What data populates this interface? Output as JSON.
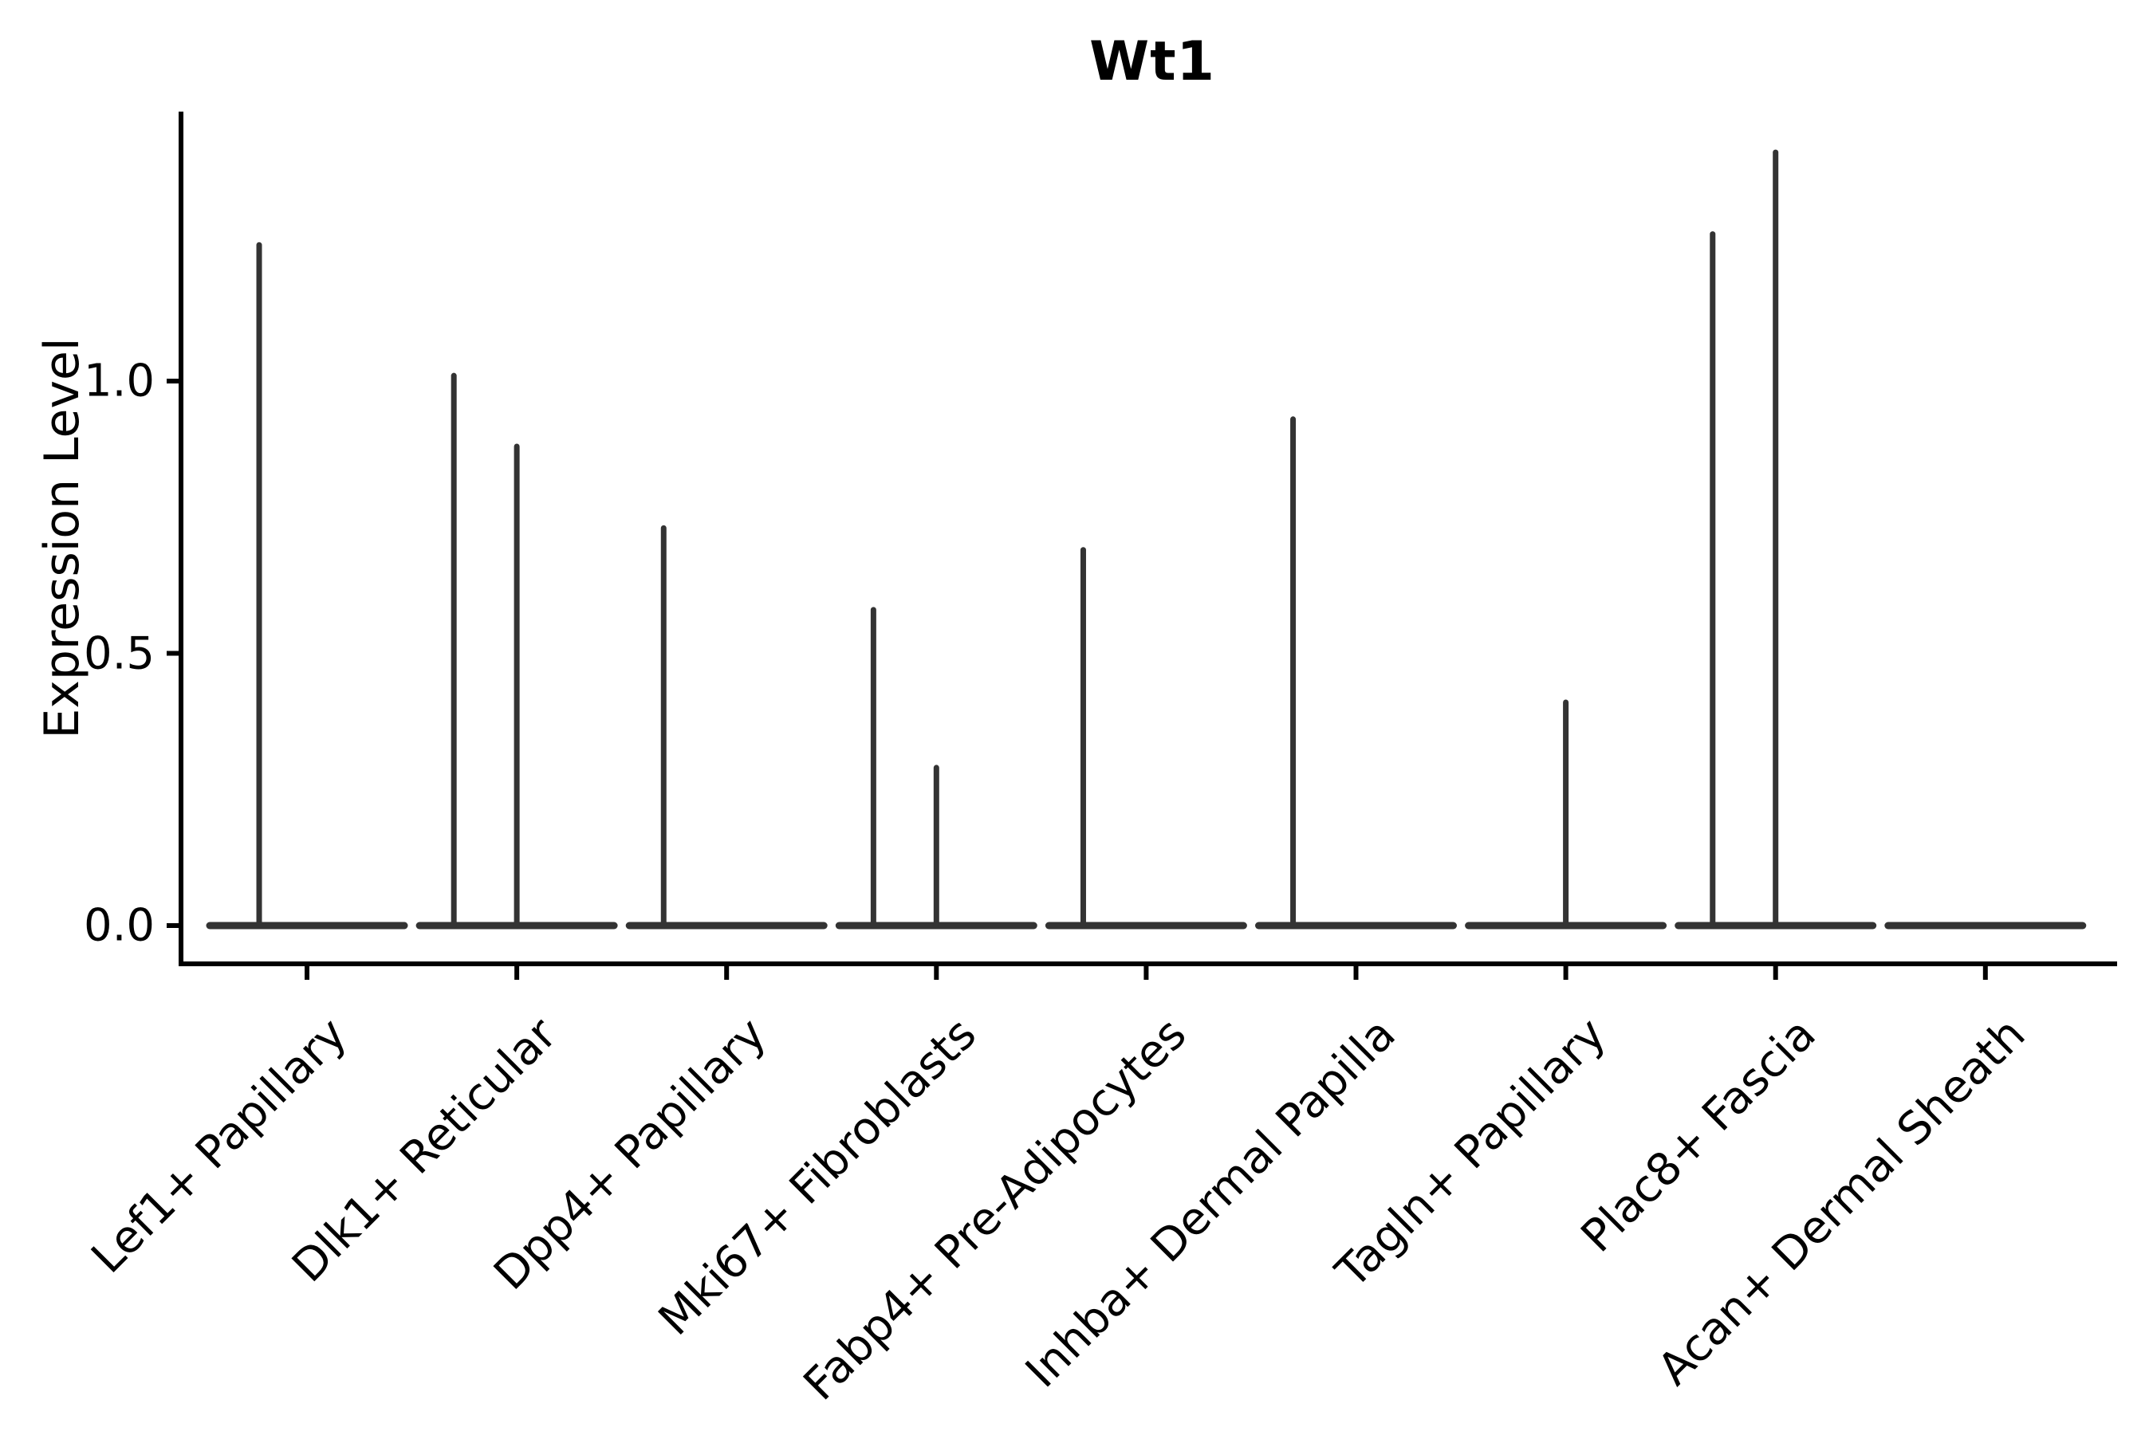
{
  "title": "Wt1",
  "chart_data": {
    "type": "violin",
    "title": "Wt1",
    "xlabel": "",
    "ylabel": "Expression Level",
    "legend": "none",
    "grid": false,
    "background": "#ffffff",
    "y_ticks": [
      "0.0",
      "0.5",
      "1.0"
    ],
    "y_tick_values": [
      0.0,
      0.5,
      1.0
    ],
    "ylim": [
      -0.07,
      1.49
    ],
    "categories": [
      "Lef1+ Papillary",
      "Dlk1+ Reticular",
      "Dpp4+ Papillary",
      "Mki67+ Fibroblasts",
      "Fabp4+ Pre-Adipocytes",
      "Inhba+ Dermal Papilla",
      "Tagln+ Papillary",
      "Plac8+ Fascia",
      "Acan+ Dermal Sheath"
    ],
    "violins": [
      {
        "category": "Lef1+ Papillary",
        "baseline_value": 0,
        "spikes": [
          {
            "value": 1.25,
            "offset_frac": -0.228
          }
        ]
      },
      {
        "category": "Dlk1+ Reticular",
        "baseline_value": 0,
        "spikes": [
          {
            "value": 1.01,
            "offset_frac": -0.3
          },
          {
            "value": 0.88,
            "offset_frac": 0
          }
        ]
      },
      {
        "category": "Dpp4+ Papillary",
        "baseline_value": 0,
        "spikes": [
          {
            "value": 0.73,
            "offset_frac": -0.3
          }
        ]
      },
      {
        "category": "Mki67+ Fibroblasts",
        "baseline_value": 0,
        "spikes": [
          {
            "value": 0.58,
            "offset_frac": -0.3
          },
          {
            "value": 0.29,
            "offset_frac": 0
          }
        ]
      },
      {
        "category": "Fabp4+ Pre-Adipocytes",
        "baseline_value": 0,
        "spikes": [
          {
            "value": 0.69,
            "offset_frac": -0.3
          }
        ]
      },
      {
        "category": "Inhba+ Dermal Papilla",
        "baseline_value": 0,
        "spikes": [
          {
            "value": 0.93,
            "offset_frac": -0.3
          }
        ]
      },
      {
        "category": "Tagln+ Papillary",
        "baseline_value": 0,
        "spikes": [
          {
            "value": 0.41,
            "offset_frac": 0
          }
        ]
      },
      {
        "category": "Plac8+ Fascia",
        "baseline_value": 0,
        "spikes": [
          {
            "value": 1.27,
            "offset_frac": -0.3
          },
          {
            "value": 1.42,
            "offset_frac": 0
          }
        ]
      },
      {
        "category": "Acan+ Dermal Sheath",
        "baseline_value": 0,
        "spikes": []
      }
    ],
    "colors": {
      "violin_stroke": "#333333",
      "axis": "#000000",
      "text": "#000000",
      "background": "#ffffff"
    }
  }
}
